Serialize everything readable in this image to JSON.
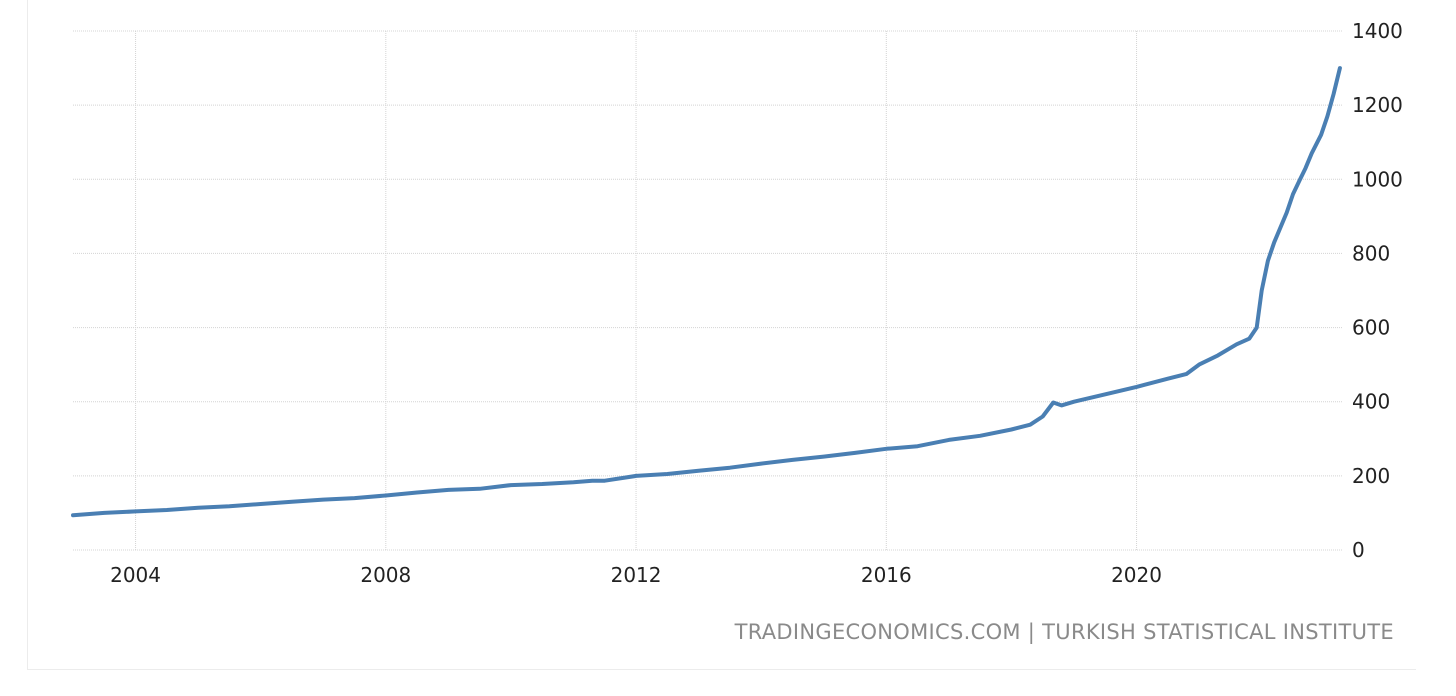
{
  "source_credit": "TRADINGECONOMICS.COM | TURKISH STATISTICAL INSTITUTE",
  "colors": {
    "line": "#4a7fb3",
    "grid": "#d4d4d4",
    "axis_text": "#222222",
    "credit": "#8a8a8a"
  },
  "chart_data": {
    "type": "line",
    "title": "",
    "xlabel": "",
    "ylabel": "",
    "ylim": [
      0,
      1400
    ],
    "xlim": [
      2003.0,
      2023.3
    ],
    "y_ticks": [
      0,
      200,
      400,
      600,
      800,
      1000,
      1200,
      1400
    ],
    "x_ticks": [
      2004,
      2008,
      2012,
      2016,
      2020
    ],
    "y_axis_position": "right",
    "grid": true,
    "legend": "none",
    "series": [
      {
        "x": [
          2003.0,
          2003.5,
          2004.0,
          2004.5,
          2005.0,
          2005.5,
          2006.0,
          2006.5,
          2007.0,
          2007.5,
          2008.0,
          2008.5,
          2009.0,
          2009.5,
          2010.0,
          2010.5,
          2011.0,
          2011.3,
          2011.5,
          2012.0,
          2012.5,
          2013.0,
          2013.5,
          2014.0,
          2014.5,
          2015.0,
          2015.5,
          2016.0,
          2016.5,
          2017.0,
          2017.5,
          2018.0,
          2018.3,
          2018.5,
          2018.67,
          2018.8,
          2019.0,
          2019.5,
          2020.0,
          2020.5,
          2020.8,
          2021.0,
          2021.3,
          2021.6,
          2021.8,
          2021.92,
          2022.0,
          2022.1,
          2022.2,
          2022.4,
          2022.5,
          2022.6,
          2022.7,
          2022.8,
          2022.95,
          2023.05,
          2023.15,
          2023.25
        ],
        "y": [
          94,
          100,
          104,
          108,
          114,
          118,
          124,
          130,
          136,
          140,
          147,
          155,
          162,
          165,
          175,
          178,
          183,
          187,
          187,
          200,
          205,
          214,
          222,
          233,
          243,
          252,
          262,
          273,
          280,
          297,
          308,
          325,
          338,
          360,
          398,
          390,
          400,
          420,
          440,
          462,
          475,
          500,
          525,
          555,
          570,
          600,
          700,
          780,
          830,
          910,
          960,
          995,
          1030,
          1070,
          1120,
          1170,
          1230,
          1300
        ]
      }
    ]
  }
}
